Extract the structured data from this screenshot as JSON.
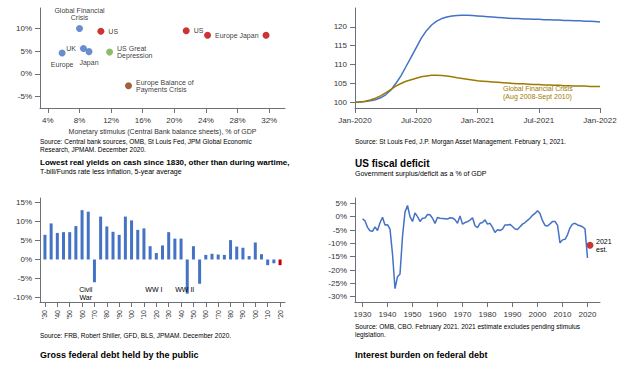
{
  "chart_data": [
    {
      "type": "scatter",
      "xlabel": "Monetary stimulus (Central Bank balance sheets), % of GDP",
      "source": "Source: Central bank sources, OMB, St Louis Fed, JPM Global Economic\nResearch, JPMAM. December 2020.",
      "xlim": [
        0.03,
        0.34
      ],
      "ylim": [
        -0.075,
        0.145
      ],
      "xticks": [
        {
          "value": 0.04,
          "label": "4%"
        },
        {
          "value": 0.08,
          "label": "8%"
        },
        {
          "value": 0.12,
          "label": "12%"
        },
        {
          "value": 0.16,
          "label": "16%"
        },
        {
          "value": 0.2,
          "label": "20%"
        },
        {
          "value": 0.24,
          "label": "24%"
        },
        {
          "value": 0.28,
          "label": "28%"
        },
        {
          "value": 0.32,
          "label": "32%"
        }
      ],
      "yticks": [
        {
          "value": -0.05,
          "label": "-5%"
        },
        {
          "value": 0.0,
          "label": "0%"
        },
        {
          "value": 0.05,
          "label": "5%"
        },
        {
          "value": 0.1,
          "label": "10%"
        }
      ],
      "x": [
        0.08,
        0.107,
        0.085,
        0.092,
        0.058,
        0.118,
        0.215,
        0.242,
        0.316,
        0.142
      ],
      "values": [
        0.1,
        0.094,
        0.056,
        0.049,
        0.046,
        0.048,
        0.095,
        0.085,
        0.085,
        -0.026
      ],
      "labels": [
        "Global Financial\nCrisis",
        "US",
        "UK",
        "Japan",
        "Europe",
        "US Great\nDepression",
        "US",
        "Europe",
        "Japan",
        "Europe Balance of\nPayments Crisis"
      ],
      "colors": [
        "#4472c4",
        "#c00000",
        "#4472c4",
        "#4472c4",
        "#4472c4",
        "#70ad47",
        "#c00000",
        "#c00000",
        "#c00000",
        "#843c0c"
      ],
      "grid": false
    },
    {
      "type": "line",
      "source": "Source: St Louis Fed, J.P. Morgan Asset Management. February 1, 2021.",
      "xlim": [
        0,
        24
      ],
      "ylim": [
        98.5,
        125
      ],
      "xticks": [
        {
          "value": 0,
          "label": "Jan-2020"
        },
        {
          "value": 6,
          "label": "Jul-2020"
        },
        {
          "value": 12,
          "label": "Jan-2021"
        },
        {
          "value": 18,
          "label": "Jul-2021"
        },
        {
          "value": 24,
          "label": "Jan-2022"
        }
      ],
      "yticks": [
        100,
        105,
        110,
        115,
        120
      ],
      "x": [
        0,
        0.5,
        1,
        1.5,
        2,
        2.5,
        3,
        3.5,
        4,
        4.5,
        5,
        5.5,
        6,
        6.5,
        7,
        7.5,
        8,
        8.5,
        9,
        9.5,
        10,
        10.5,
        11,
        11.5,
        12,
        12.5,
        13,
        13.5,
        14,
        14.5,
        15,
        15.5,
        16,
        16.5,
        17,
        17.5,
        18,
        18.5,
        19,
        19.5,
        20,
        20.5,
        21,
        21.5,
        22,
        22.5,
        23,
        23.5,
        24
      ],
      "series": [
        {
          "color": "#4472c4",
          "values": [
            100,
            100.1,
            100.2,
            100.4,
            100.7,
            101.2,
            102,
            103.2,
            105,
            107,
            109.5,
            112,
            114.5,
            117,
            119,
            120.5,
            121.5,
            122.2,
            122.6,
            122.9,
            123.0,
            123.1,
            123.1,
            123.0,
            122.9,
            122.8,
            122.7,
            122.6,
            122.5,
            122.4,
            122.3,
            122.2,
            122.2,
            122.1,
            122.1,
            122.0,
            122.0,
            121.9,
            121.9,
            121.8,
            121.8,
            121.7,
            121.7,
            121.6,
            121.6,
            121.5,
            121.5,
            121.4,
            121.3
          ]
        },
        {
          "color": "#9c7a00",
          "values": [
            100,
            100.1,
            100.3,
            100.6,
            101.1,
            101.7,
            102.5,
            103.4,
            104.3,
            105.0,
            105.6,
            106.0,
            106.4,
            106.8,
            107.0,
            107.2,
            107.2,
            107.1,
            107.0,
            106.8,
            106.5,
            106.3,
            106.1,
            105.9,
            105.7,
            105.6,
            105.5,
            105.4,
            105.3,
            105.2,
            105.1,
            105.0,
            104.9,
            104.9,
            104.8,
            104.7,
            104.7,
            104.6,
            104.6,
            104.5,
            104.5,
            104.4,
            104.4,
            104.3,
            104.3,
            104.3,
            104.2,
            104.2,
            104.2
          ]
        }
      ],
      "annotations": [
        {
          "text": "Global Financial Crisis\n(Aug 2008-Sept 2010)",
          "x": 14.5,
          "y": 104.8
        }
      ],
      "grid": false
    },
    {
      "type": "bar",
      "title": "Lowest real yields on cash since 1830, other than during wartime,",
      "subtitle": "T-bill/Funds rate less inflation, 5-year average",
      "source": "Source: FRB, Robert Shiller, GFD, BLS, JPMAM. December 2020.",
      "footer": "Gross federal debt held by the public",
      "xlim": [
        1826,
        2024
      ],
      "ylim": [
        -0.112,
        0.162
      ],
      "xticks": [
        {
          "value": 1830,
          "label": "'30"
        },
        {
          "value": 1840,
          "label": "'40"
        },
        {
          "value": 1850,
          "label": "'50"
        },
        {
          "value": 1860,
          "label": "'60"
        },
        {
          "value": 1870,
          "label": "'70"
        },
        {
          "value": 1880,
          "label": "'80"
        },
        {
          "value": 1890,
          "label": "'90"
        },
        {
          "value": 1900,
          "label": "'00"
        },
        {
          "value": 1910,
          "label": "'10"
        },
        {
          "value": 1920,
          "label": "'20"
        },
        {
          "value": 1930,
          "label": "'30"
        },
        {
          "value": 1940,
          "label": "'40"
        },
        {
          "value": 1950,
          "label": "'50"
        },
        {
          "value": 1960,
          "label": "'60"
        },
        {
          "value": 1970,
          "label": "'70"
        },
        {
          "value": 1980,
          "label": "'80"
        },
        {
          "value": 1990,
          "label": "'90"
        },
        {
          "value": 2000,
          "label": "'00"
        },
        {
          "value": 2010,
          "label": "'10"
        },
        {
          "value": 2020,
          "label": "'20"
        }
      ],
      "yticks": [
        {
          "value": -0.1,
          "label": "-10%"
        },
        {
          "value": -0.05,
          "label": "-5%"
        },
        {
          "value": 0.0,
          "label": "0%"
        },
        {
          "value": 0.05,
          "label": "5%"
        },
        {
          "value": 0.1,
          "label": "10%"
        },
        {
          "value": 0.15,
          "label": "15%"
        }
      ],
      "x": [
        1830,
        1835,
        1840,
        1845,
        1850,
        1855,
        1860,
        1865,
        1870,
        1875,
        1880,
        1885,
        1890,
        1895,
        1900,
        1905,
        1910,
        1915,
        1920,
        1925,
        1930,
        1935,
        1940,
        1945,
        1950,
        1955,
        1960,
        1965,
        1970,
        1975,
        1980,
        1985,
        1990,
        1995,
        2000,
        2005,
        2010,
        2015,
        2020
      ],
      "values": [
        0.065,
        0.095,
        0.07,
        0.072,
        0.072,
        0.088,
        0.13,
        0.126,
        -0.06,
        0.113,
        0.087,
        0.073,
        0.065,
        0.113,
        0.103,
        0.078,
        0.082,
        0.035,
        0.017,
        0.037,
        0.072,
        0.055,
        0.055,
        -0.09,
        0.035,
        -0.064,
        0.012,
        0.015,
        0.013,
        0.012,
        0.051,
        0.034,
        0.031,
        0.009,
        0.045,
        0.014,
        -0.015,
        -0.01,
        -0.015
      ],
      "colors": [
        "#4472c4",
        "#4472c4",
        "#4472c4",
        "#4472c4",
        "#4472c4",
        "#4472c4",
        "#4472c4",
        "#4472c4",
        "#4472c4",
        "#4472c4",
        "#4472c4",
        "#4472c4",
        "#4472c4",
        "#4472c4",
        "#4472c4",
        "#4472c4",
        "#4472c4",
        "#4472c4",
        "#4472c4",
        "#4472c4",
        "#4472c4",
        "#4472c4",
        "#4472c4",
        "#4472c4",
        "#4472c4",
        "#4472c4",
        "#4472c4",
        "#4472c4",
        "#4472c4",
        "#4472c4",
        "#4472c4",
        "#4472c4",
        "#4472c4",
        "#4472c4",
        "#4472c4",
        "#4472c4",
        "#4472c4",
        "#4472c4",
        "#c00000"
      ],
      "annotations": [
        {
          "text": "Civil\nWar",
          "x": 1863,
          "y": -0.068
        },
        {
          "text": "WW I",
          "x": 1918,
          "y": -0.068
        },
        {
          "text": "WW II",
          "x": 1943,
          "y": -0.068
        }
      ],
      "grid": false
    },
    {
      "type": "line",
      "title": "US fiscal deficit",
      "subtitle": "Government surplus/deficit as a % of GDP",
      "source": "Source: OMB, CBO. February 2021. 2021 estimate excludes pending stimulus\nlegislation.",
      "footer": "Interest burden on federal debt",
      "xlim": [
        1927,
        2025
      ],
      "ylim": [
        -0.32,
        0.07
      ],
      "xticks": [
        1930,
        1940,
        1950,
        1960,
        1970,
        1980,
        1990,
        2000,
        2010,
        2020
      ],
      "yticks": [
        {
          "value": 0.05,
          "label": "5%"
        },
        {
          "value": 0.0,
          "label": "0%"
        },
        {
          "value": -0.05,
          "label": "-5%"
        },
        {
          "value": -0.1,
          "label": "-10%"
        },
        {
          "value": -0.15,
          "label": "-15%"
        },
        {
          "value": -0.2,
          "label": "-20%"
        },
        {
          "value": -0.25,
          "label": "-25%"
        },
        {
          "value": -0.3,
          "label": "-30%"
        }
      ],
      "series": [
        {
          "type": "line",
          "color": "#4472c4",
          "x": [
            1930,
            1931,
            1932,
            1933,
            1934,
            1935,
            1936,
            1937,
            1938,
            1939,
            1940,
            1941,
            1942,
            1943,
            1944,
            1945,
            1946,
            1947,
            1948,
            1949,
            1950,
            1951,
            1952,
            1953,
            1954,
            1955,
            1956,
            1957,
            1958,
            1959,
            1960,
            1961,
            1962,
            1963,
            1964,
            1965,
            1966,
            1967,
            1968,
            1969,
            1970,
            1971,
            1972,
            1973,
            1974,
            1975,
            1976,
            1977,
            1978,
            1979,
            1980,
            1981,
            1982,
            1983,
            1984,
            1985,
            1986,
            1987,
            1988,
            1989,
            1990,
            1991,
            1992,
            1993,
            1994,
            1995,
            1996,
            1997,
            1998,
            1999,
            2000,
            2001,
            2002,
            2003,
            2004,
            2005,
            2006,
            2007,
            2008,
            2009,
            2010,
            2011,
            2012,
            2013,
            2014,
            2015,
            2016,
            2017,
            2018,
            2019,
            2020
          ],
          "values": [
            -0.008,
            -0.016,
            -0.04,
            -0.053,
            -0.055,
            -0.038,
            -0.052,
            -0.023,
            -0.002,
            -0.031,
            -0.03,
            -0.047,
            -0.14,
            -0.27,
            -0.225,
            -0.215,
            -0.075,
            0.017,
            0.042,
            0.0,
            -0.018,
            0.014,
            0.0,
            -0.018,
            -0.006,
            -0.005,
            0.008,
            0.007,
            -0.006,
            -0.025,
            -0.003,
            -0.006,
            -0.007,
            -0.008,
            -0.009,
            -0.004,
            -0.005,
            -0.011,
            -0.025,
            0.003,
            -0.028,
            -0.022,
            -0.019,
            -0.013,
            -0.004,
            -0.034,
            -0.041,
            -0.025,
            -0.022,
            -0.012,
            -0.028,
            -0.025,
            -0.04,
            -0.059,
            -0.049,
            -0.052,
            -0.047,
            -0.031,
            -0.031,
            -0.029,
            -0.037,
            -0.046,
            -0.048,
            -0.038,
            -0.028,
            -0.022,
            -0.014,
            -0.006,
            0.005,
            0.012,
            0.022,
            0.012,
            -0.015,
            -0.033,
            -0.035,
            -0.027,
            -0.018,
            -0.018,
            -0.032,
            -0.098,
            -0.087,
            -0.085,
            -0.068,
            -0.042,
            -0.028,
            -0.025,
            -0.031,
            -0.034,
            -0.038,
            -0.046,
            -0.155
          ]
        },
        {
          "type": "scatter",
          "color": "#c00000",
          "x": [
            2021
          ],
          "values": [
            -0.107
          ]
        }
      ],
      "annotations": [
        {
          "text": "2021\nest.",
          "x": 2021,
          "y": -0.107
        }
      ],
      "grid": false
    }
  ]
}
